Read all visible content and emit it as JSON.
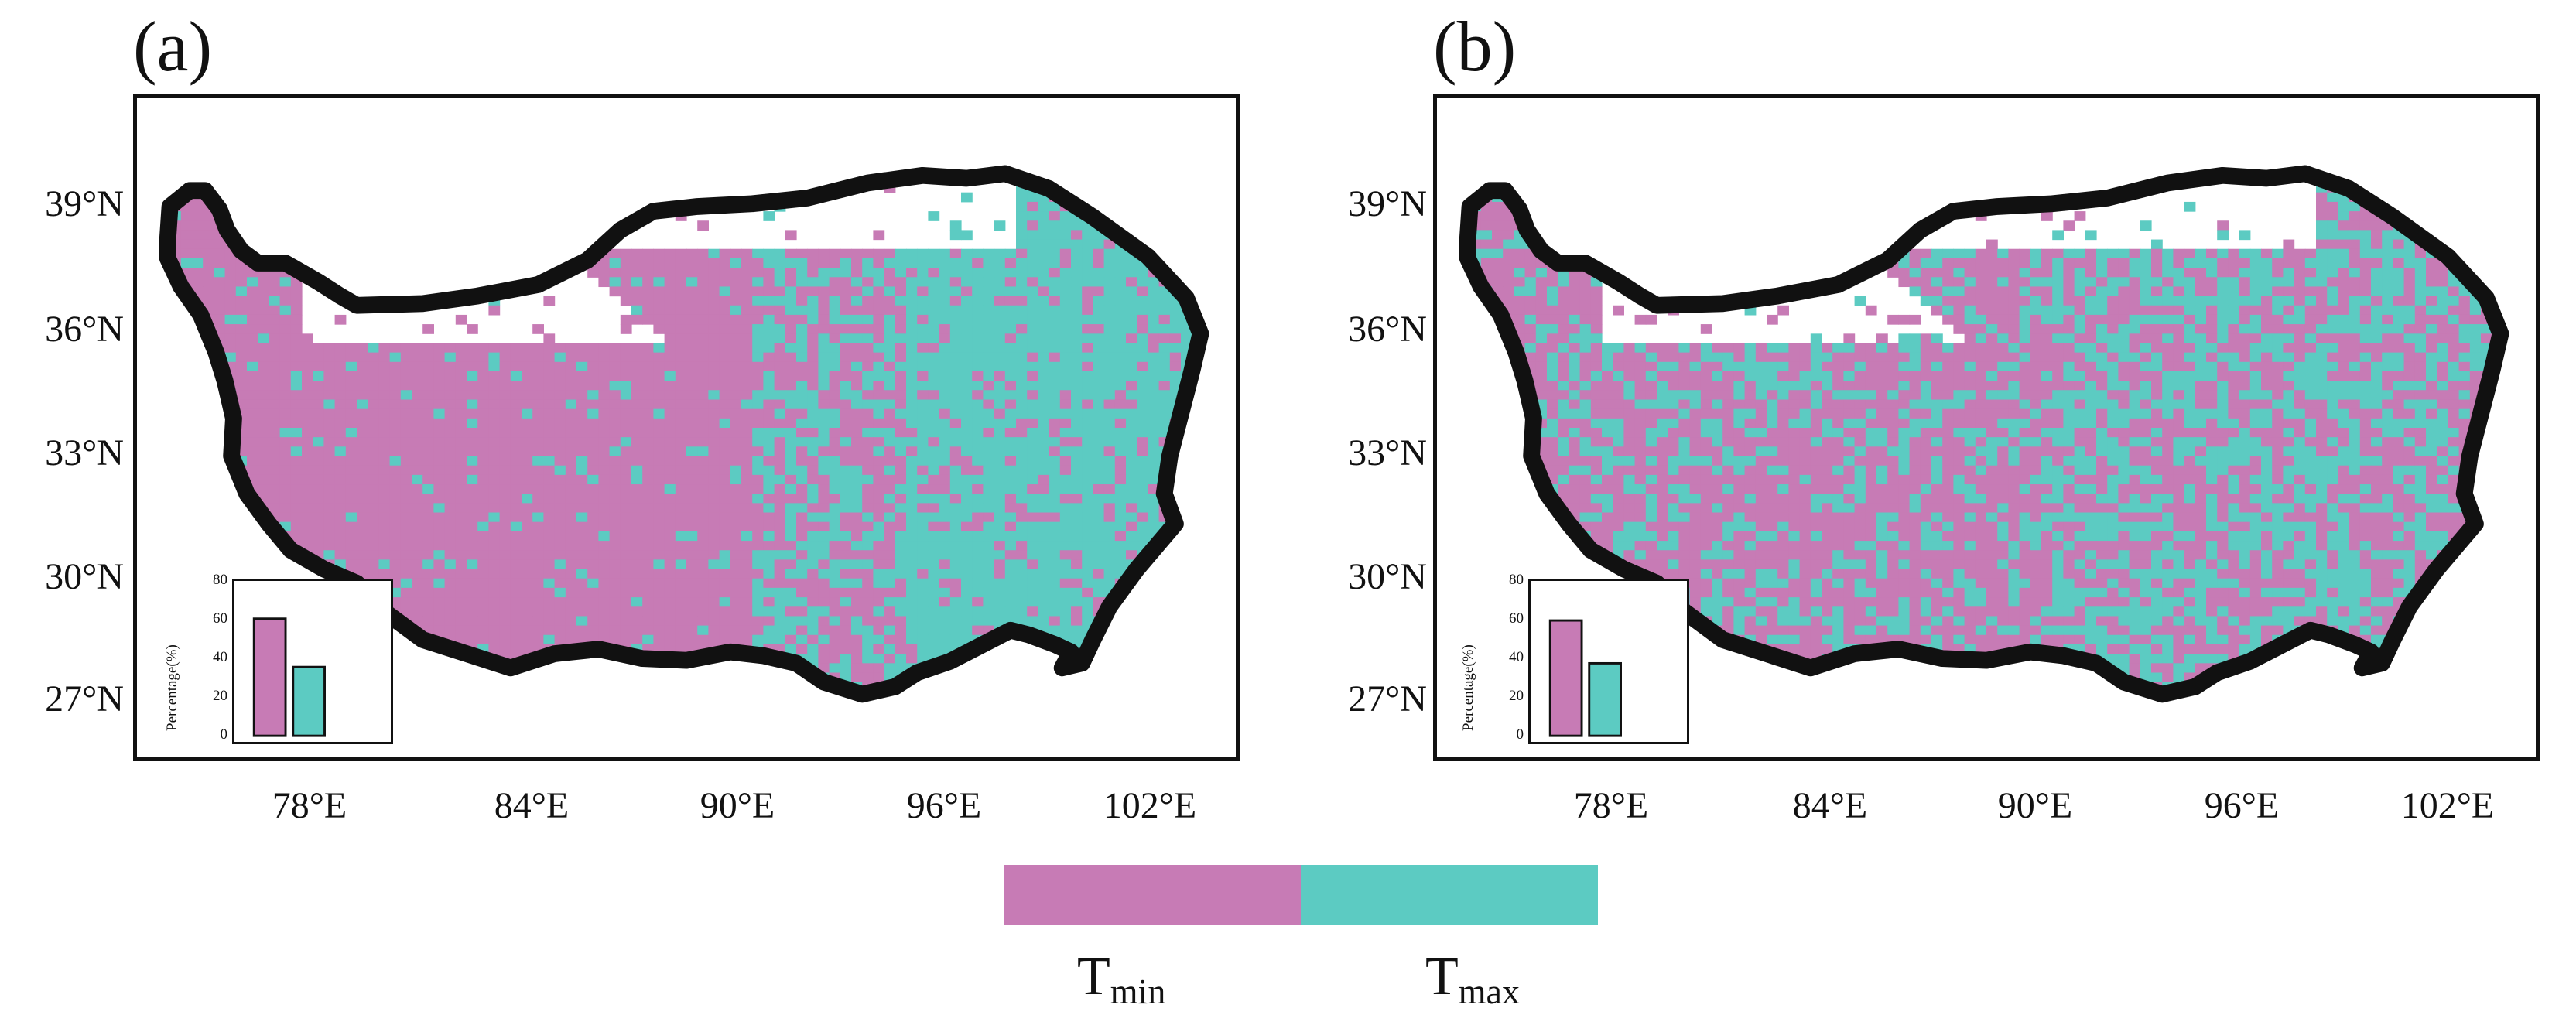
{
  "panels": [
    {
      "label": "(a)",
      "inset": {
        "ylabel": "Percentage(%)",
        "yticks": [
          "0",
          "20",
          "40",
          "60",
          "80"
        ],
        "ymax": 80,
        "values": {
          "Tmin": 63,
          "Tmax": 37
        }
      },
      "dominant_bias": "Tmin"
    },
    {
      "label": "(b)",
      "inset": {
        "ylabel": "Percentage(%)",
        "yticks": [
          "0",
          "20",
          "40",
          "60",
          "80"
        ],
        "ymax": 80,
        "values": {
          "Tmin": 62,
          "Tmax": 39
        }
      },
      "dominant_bias": "mixed"
    }
  ],
  "axes": {
    "lat_labels": [
      "39°N",
      "36°N",
      "33°N",
      "30°N",
      "27°N"
    ],
    "lon_labels": [
      "78°E",
      "84°E",
      "90°E",
      "96°E",
      "102°E"
    ]
  },
  "legend": {
    "items": [
      {
        "base": "T",
        "sub": "min",
        "color": "#c77bb5"
      },
      {
        "base": "T",
        "sub": "max",
        "color": "#5ccbc2"
      }
    ]
  },
  "colors": {
    "tmin": "#c77bb5",
    "tmax": "#5ccbc2",
    "outline": "#111111"
  }
}
